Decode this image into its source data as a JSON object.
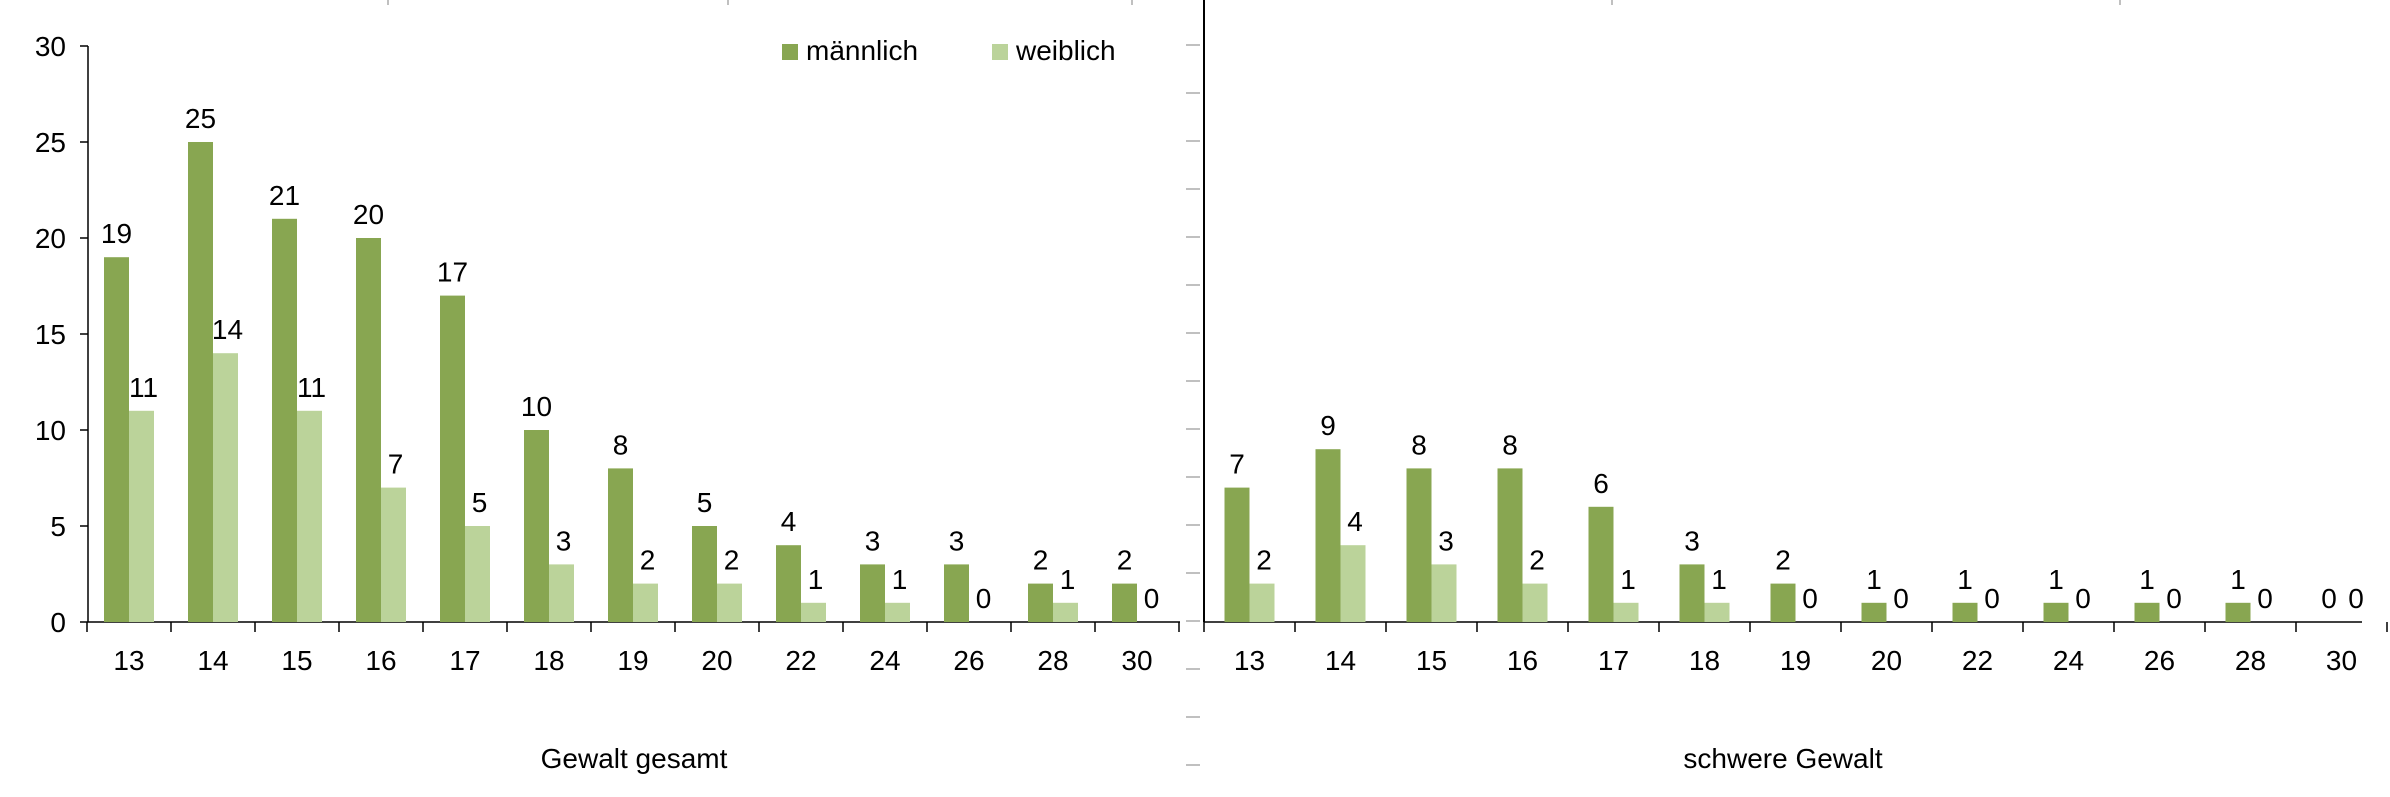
{
  "colors": {
    "maennlich": "#88A651",
    "weiblich": "#BBD39A",
    "axis": "#000000",
    "tick_gray": "#808080"
  },
  "legend": {
    "maennlich": "männlich",
    "weiblich": "weiblich",
    "placement": "top-right of left panel"
  },
  "chart_data": [
    {
      "type": "bar",
      "title": "",
      "xlabel": "Gewalt gesamt",
      "ylabel": "",
      "ylim": [
        0,
        30
      ],
      "yticks": [
        0,
        5,
        10,
        15,
        20,
        25,
        30
      ],
      "categories": [
        "13",
        "14",
        "15",
        "16",
        "17",
        "18",
        "19",
        "20",
        "22",
        "24",
        "26",
        "28",
        "30"
      ],
      "series": [
        {
          "name": "männlich",
          "values": [
            19,
            25,
            21,
            20,
            17,
            10,
            8,
            5,
            4,
            3,
            3,
            2,
            2
          ]
        },
        {
          "name": "weiblich",
          "values": [
            11,
            14,
            11,
            7,
            5,
            3,
            2,
            2,
            1,
            1,
            0,
            1,
            0
          ]
        }
      ],
      "grid": false
    },
    {
      "type": "bar",
      "title": "",
      "xlabel": "schwere Gewalt",
      "ylabel": "",
      "ylim": [
        0,
        30
      ],
      "categories": [
        "13",
        "14",
        "15",
        "16",
        "17",
        "18",
        "19",
        "20",
        "22",
        "24",
        "26",
        "28",
        "30"
      ],
      "series": [
        {
          "name": "männlich",
          "values": [
            7,
            9,
            8,
            8,
            6,
            3,
            2,
            1,
            1,
            1,
            1,
            1,
            0
          ]
        },
        {
          "name": "weiblich",
          "values": [
            2,
            4,
            3,
            2,
            1,
            1,
            0,
            0,
            0,
            0,
            0,
            0,
            0
          ]
        }
      ],
      "grid": false
    }
  ]
}
